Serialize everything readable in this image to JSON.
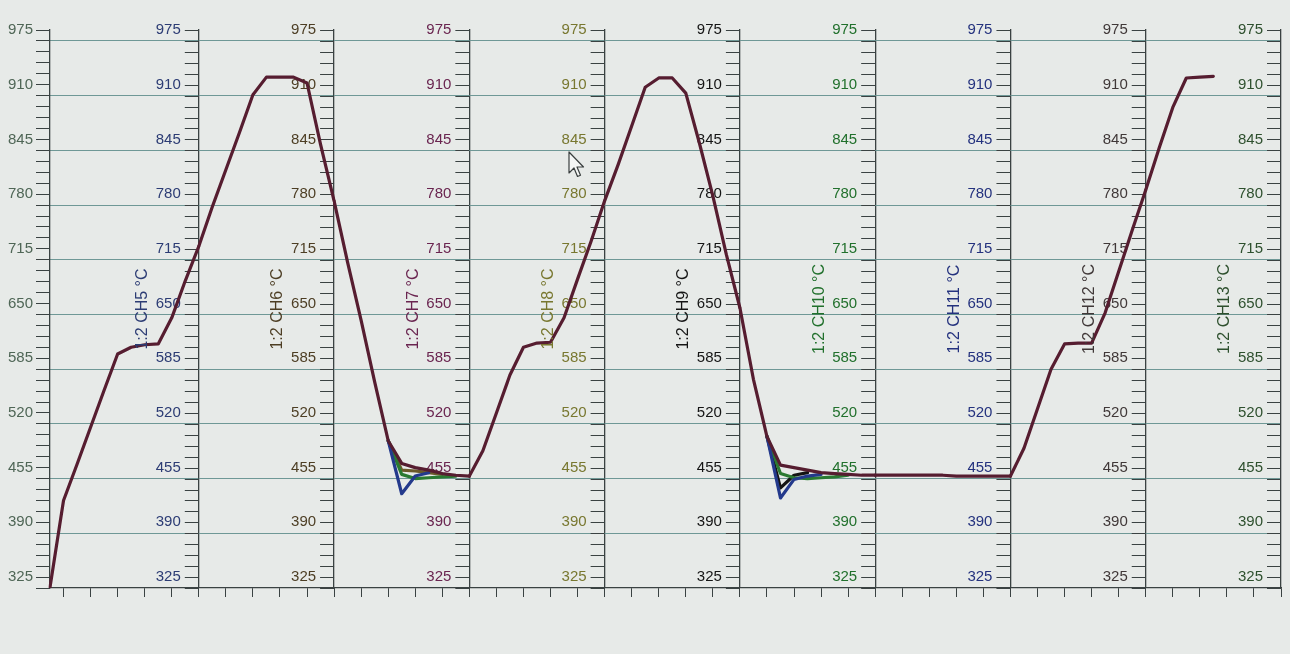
{
  "chart_data": [
    {
      "type": "line",
      "grid": "y",
      "categories": [
        null,
        null,
        null,
        null,
        null,
        null,
        null,
        null,
        null,
        null,
        null,
        null
      ],
      "ylim": [
        312,
        975
      ],
      "yticks": [
        {
          "value": 312,
          "label": null
        },
        325,
        {
          "value": 338,
          "label": null
        },
        {
          "value": 351,
          "label": null
        },
        {
          "value": 364,
          "label": null
        },
        {
          "value": 377,
          "label": null
        },
        390,
        {
          "value": 403,
          "label": null
        },
        {
          "value": 416,
          "label": null
        },
        {
          "value": 429,
          "label": null
        },
        {
          "value": 442,
          "label": null
        },
        455,
        {
          "value": 468,
          "label": null
        },
        {
          "value": 481,
          "label": null
        },
        {
          "value": 494,
          "label": null
        },
        {
          "value": 507,
          "label": null
        },
        520,
        {
          "value": 533,
          "label": null
        },
        {
          "value": 546,
          "label": null
        },
        {
          "value": 559,
          "label": null
        },
        {
          "value": 572,
          "label": null
        },
        585,
        {
          "value": 598,
          "label": null
        },
        {
          "value": 611,
          "label": null
        },
        {
          "value": 624,
          "label": null
        },
        {
          "value": 637,
          "label": null
        },
        650,
        {
          "value": 663,
          "label": null
        },
        {
          "value": 676,
          "label": null
        },
        {
          "value": 689,
          "label": null
        },
        {
          "value": 702,
          "label": null
        },
        715,
        {
          "value": 728,
          "label": null
        },
        {
          "value": 741,
          "label": null
        },
        {
          "value": 754,
          "label": null
        },
        {
          "value": 767,
          "label": null
        },
        780,
        {
          "value": 793,
          "label": null
        },
        {
          "value": 806,
          "label": null
        },
        {
          "value": 819,
          "label": null
        },
        {
          "value": 832,
          "label": null
        },
        845,
        {
          "value": 858,
          "label": null
        },
        {
          "value": 871,
          "label": null
        },
        {
          "value": 884,
          "label": null
        },
        {
          "value": 897,
          "label": null
        },
        910,
        {
          "value": 923,
          "label": null
        },
        {
          "value": 936,
          "label": null
        },
        {
          "value": 949,
          "label": null
        },
        {
          "value": 962,
          "label": null
        },
        975
      ],
      "y2label": "1:2 CH5 °C",
      "y2lim": [
        312,
        975
      ],
      "y2ticks": [
        {
          "value": 312,
          "label": null
        },
        325,
        {
          "value": 338,
          "label": null
        },
        {
          "value": 351,
          "label": null
        },
        {
          "value": 364,
          "label": null
        },
        {
          "value": 377,
          "label": null
        },
        390,
        {
          "value": 403,
          "label": null
        },
        {
          "value": 416,
          "label": null
        },
        {
          "value": 429,
          "label": null
        },
        {
          "value": 442,
          "label": null
        },
        455,
        {
          "value": 468,
          "label": null
        },
        {
          "value": 481,
          "label": null
        },
        {
          "value": 494,
          "label": null
        },
        {
          "value": 507,
          "label": null
        },
        520,
        {
          "value": 533,
          "label": null
        },
        {
          "value": 546,
          "label": null
        },
        {
          "value": 559,
          "label": null
        },
        {
          "value": 572,
          "label": null
        },
        585,
        {
          "value": 598,
          "label": null
        },
        {
          "value": 611,
          "label": null
        },
        {
          "value": 624,
          "label": null
        },
        {
          "value": 637,
          "label": null
        },
        650,
        {
          "value": 663,
          "label": null
        },
        {
          "value": 676,
          "label": null
        },
        {
          "value": 689,
          "label": null
        },
        {
          "value": 702,
          "label": null
        },
        715,
        {
          "value": 728,
          "label": null
        },
        {
          "value": 741,
          "label": null
        },
        {
          "value": 754,
          "label": null
        },
        {
          "value": 767,
          "label": null
        },
        780,
        {
          "value": 793,
          "label": null
        },
        {
          "value": 806,
          "label": null
        },
        {
          "value": 819,
          "label": null
        },
        {
          "value": 832,
          "label": null
        },
        845,
        {
          "value": 858,
          "label": null
        },
        {
          "value": 871,
          "label": null
        },
        {
          "value": 884,
          "label": null
        },
        {
          "value": 897,
          "label": null
        },
        910,
        {
          "value": 923,
          "label": null
        },
        {
          "value": 936,
          "label": null
        },
        {
          "value": 949,
          "label": null
        },
        {
          "value": 962,
          "label": null
        },
        975
      ],
      "series": [
        {
          "color": "#561d30",
          "values": [
            313,
            416,
            459,
            503,
            547,
            590,
            598,
            601,
            602,
            633,
            677,
            718
          ]
        }
      ]
    },
    {
      "type": "line",
      "grid": "y",
      "categories": [
        null,
        null,
        null,
        null,
        null,
        null,
        null,
        null,
        null,
        null,
        null
      ],
      "ylabel": "1:2 CH6 °C",
      "ylim": [
        312,
        975
      ],
      "yticks": [
        {
          "value": 312,
          "label": null
        },
        325,
        {
          "value": 338,
          "label": null
        },
        {
          "value": 351,
          "label": null
        },
        {
          "value": 364,
          "label": null
        },
        {
          "value": 377,
          "label": null
        },
        390,
        {
          "value": 403,
          "label": null
        },
        {
          "value": 416,
          "label": null
        },
        {
          "value": 429,
          "label": null
        },
        {
          "value": 442,
          "label": null
        },
        455,
        {
          "value": 468,
          "label": null
        },
        {
          "value": 481,
          "label": null
        },
        {
          "value": 494,
          "label": null
        },
        {
          "value": 507,
          "label": null
        },
        520,
        {
          "value": 533,
          "label": null
        },
        {
          "value": 546,
          "label": null
        },
        {
          "value": 559,
          "label": null
        },
        {
          "value": 572,
          "label": null
        },
        585,
        {
          "value": 598,
          "label": null
        },
        {
          "value": 611,
          "label": null
        },
        {
          "value": 624,
          "label": null
        },
        {
          "value": 637,
          "label": null
        },
        650,
        {
          "value": 663,
          "label": null
        },
        {
          "value": 676,
          "label": null
        },
        {
          "value": 689,
          "label": null
        },
        {
          "value": 702,
          "label": null
        },
        715,
        {
          "value": 728,
          "label": null
        },
        {
          "value": 741,
          "label": null
        },
        {
          "value": 754,
          "label": null
        },
        {
          "value": 767,
          "label": null
        },
        780,
        {
          "value": 793,
          "label": null
        },
        {
          "value": 806,
          "label": null
        },
        {
          "value": 819,
          "label": null
        },
        {
          "value": 832,
          "label": null
        },
        845,
        {
          "value": 858,
          "label": null
        },
        {
          "value": 871,
          "label": null
        },
        {
          "value": 884,
          "label": null
        },
        {
          "value": 897,
          "label": null
        },
        910,
        {
          "value": 923,
          "label": null
        },
        {
          "value": 936,
          "label": null
        },
        {
          "value": 949,
          "label": null
        },
        {
          "value": 962,
          "label": null
        },
        975
      ],
      "series": [
        {
          "color": "#561d30",
          "values": [
            718,
            765,
            809,
            853,
            898,
            919,
            919,
            919,
            912,
            839,
            772
          ]
        }
      ]
    },
    {
      "type": "line",
      "grid": "y",
      "categories": [
        null,
        null,
        null,
        null,
        null,
        null,
        null,
        null,
        null,
        null,
        null
      ],
      "ylabel": "1:2 CH7 °C",
      "ylim": [
        312,
        975
      ],
      "yticks": [
        {
          "value": 312,
          "label": null
        },
        325,
        {
          "value": 338,
          "label": null
        },
        {
          "value": 351,
          "label": null
        },
        {
          "value": 364,
          "label": null
        },
        {
          "value": 377,
          "label": null
        },
        390,
        {
          "value": 403,
          "label": null
        },
        {
          "value": 416,
          "label": null
        },
        {
          "value": 429,
          "label": null
        },
        {
          "value": 442,
          "label": null
        },
        455,
        {
          "value": 468,
          "label": null
        },
        {
          "value": 481,
          "label": null
        },
        {
          "value": 494,
          "label": null
        },
        {
          "value": 507,
          "label": null
        },
        520,
        {
          "value": 533,
          "label": null
        },
        {
          "value": 546,
          "label": null
        },
        {
          "value": 559,
          "label": null
        },
        {
          "value": 572,
          "label": null
        },
        585,
        {
          "value": 598,
          "label": null
        },
        {
          "value": 611,
          "label": null
        },
        {
          "value": 624,
          "label": null
        },
        {
          "value": 637,
          "label": null
        },
        650,
        {
          "value": 663,
          "label": null
        },
        {
          "value": 676,
          "label": null
        },
        {
          "value": 689,
          "label": null
        },
        {
          "value": 702,
          "label": null
        },
        715,
        {
          "value": 728,
          "label": null
        },
        {
          "value": 741,
          "label": null
        },
        {
          "value": 754,
          "label": null
        },
        {
          "value": 767,
          "label": null
        },
        780,
        {
          "value": 793,
          "label": null
        },
        {
          "value": 806,
          "label": null
        },
        {
          "value": 819,
          "label": null
        },
        {
          "value": 832,
          "label": null
        },
        845,
        {
          "value": 858,
          "label": null
        },
        {
          "value": 871,
          "label": null
        },
        {
          "value": 884,
          "label": null
        },
        {
          "value": 897,
          "label": null
        },
        910,
        {
          "value": 923,
          "label": null
        },
        {
          "value": 936,
          "label": null
        },
        {
          "value": 949,
          "label": null
        },
        {
          "value": 962,
          "label": null
        },
        975
      ],
      "series": [
        {
          "color": "#6b5a2a",
          "values": [
            null,
            null,
            null,
            null,
            487,
            452,
            451,
            449,
            447,
            null,
            null
          ]
        },
        {
          "color": "#2a7a32",
          "values": [
            null,
            null,
            null,
            null,
            487,
            447,
            442,
            443,
            444,
            445,
            null
          ]
        },
        {
          "color": "#243a8c",
          "values": [
            null,
            null,
            null,
            null,
            487,
            424,
            445,
            449,
            null,
            null,
            null
          ]
        },
        {
          "color": "#561d30",
          "values": [
            772,
            699,
            630,
            557,
            487,
            460,
            455,
            452,
            448,
            446,
            445
          ]
        }
      ]
    },
    {
      "type": "line",
      "grid": "y",
      "categories": [
        null,
        null,
        null,
        null,
        null,
        null,
        null,
        null,
        null,
        null,
        null
      ],
      "ylabel": "1:2 CH8 °C",
      "ylim": [
        312,
        975
      ],
      "yticks": [
        {
          "value": 312,
          "label": null
        },
        325,
        {
          "value": 338,
          "label": null
        },
        {
          "value": 351,
          "label": null
        },
        {
          "value": 364,
          "label": null
        },
        {
          "value": 377,
          "label": null
        },
        390,
        {
          "value": 403,
          "label": null
        },
        {
          "value": 416,
          "label": null
        },
        {
          "value": 429,
          "label": null
        },
        {
          "value": 442,
          "label": null
        },
        455,
        {
          "value": 468,
          "label": null
        },
        {
          "value": 481,
          "label": null
        },
        {
          "value": 494,
          "label": null
        },
        {
          "value": 507,
          "label": null
        },
        520,
        {
          "value": 533,
          "label": null
        },
        {
          "value": 546,
          "label": null
        },
        {
          "value": 559,
          "label": null
        },
        {
          "value": 572,
          "label": null
        },
        585,
        {
          "value": 598,
          "label": null
        },
        {
          "value": 611,
          "label": null
        },
        {
          "value": 624,
          "label": null
        },
        {
          "value": 637,
          "label": null
        },
        650,
        {
          "value": 663,
          "label": null
        },
        {
          "value": 676,
          "label": null
        },
        {
          "value": 689,
          "label": null
        },
        {
          "value": 702,
          "label": null
        },
        715,
        {
          "value": 728,
          "label": null
        },
        {
          "value": 741,
          "label": null
        },
        {
          "value": 754,
          "label": null
        },
        {
          "value": 767,
          "label": null
        },
        780,
        {
          "value": 793,
          "label": null
        },
        {
          "value": 806,
          "label": null
        },
        {
          "value": 819,
          "label": null
        },
        {
          "value": 832,
          "label": null
        },
        845,
        {
          "value": 858,
          "label": null
        },
        {
          "value": 871,
          "label": null
        },
        {
          "value": 884,
          "label": null
        },
        {
          "value": 897,
          "label": null
        },
        910,
        {
          "value": 923,
          "label": null
        },
        {
          "value": 936,
          "label": null
        },
        {
          "value": 949,
          "label": null
        },
        {
          "value": 962,
          "label": null
        },
        975
      ],
      "series": [
        {
          "color": "#561d30",
          "values": [
            445,
            475,
            520,
            565,
            598,
            603,
            604,
            633,
            679,
            724,
            772
          ]
        }
      ]
    },
    {
      "type": "line",
      "grid": "y",
      "categories": [
        null,
        null,
        null,
        null,
        null,
        null,
        null,
        null,
        null,
        null,
        null
      ],
      "ylabel": "1:2 CH9 °C",
      "ylim": [
        312,
        975
      ],
      "yticks": [
        {
          "value": 312,
          "label": null
        },
        325,
        {
          "value": 338,
          "label": null
        },
        {
          "value": 351,
          "label": null
        },
        {
          "value": 364,
          "label": null
        },
        {
          "value": 377,
          "label": null
        },
        390,
        {
          "value": 403,
          "label": null
        },
        {
          "value": 416,
          "label": null
        },
        {
          "value": 429,
          "label": null
        },
        {
          "value": 442,
          "label": null
        },
        455,
        {
          "value": 468,
          "label": null
        },
        {
          "value": 481,
          "label": null
        },
        {
          "value": 494,
          "label": null
        },
        {
          "value": 507,
          "label": null
        },
        520,
        {
          "value": 533,
          "label": null
        },
        {
          "value": 546,
          "label": null
        },
        {
          "value": 559,
          "label": null
        },
        {
          "value": 572,
          "label": null
        },
        585,
        {
          "value": 598,
          "label": null
        },
        {
          "value": 611,
          "label": null
        },
        {
          "value": 624,
          "label": null
        },
        {
          "value": 637,
          "label": null
        },
        650,
        {
          "value": 663,
          "label": null
        },
        {
          "value": 676,
          "label": null
        },
        {
          "value": 689,
          "label": null
        },
        {
          "value": 702,
          "label": null
        },
        715,
        {
          "value": 728,
          "label": null
        },
        {
          "value": 741,
          "label": null
        },
        {
          "value": 754,
          "label": null
        },
        {
          "value": 767,
          "label": null
        },
        780,
        {
          "value": 793,
          "label": null
        },
        {
          "value": 806,
          "label": null
        },
        {
          "value": 819,
          "label": null
        },
        {
          "value": 832,
          "label": null
        },
        845,
        {
          "value": 858,
          "label": null
        },
        {
          "value": 871,
          "label": null
        },
        {
          "value": 884,
          "label": null
        },
        {
          "value": 897,
          "label": null
        },
        910,
        {
          "value": 923,
          "label": null
        },
        {
          "value": 936,
          "label": null
        },
        {
          "value": 949,
          "label": null
        },
        {
          "value": 962,
          "label": null
        },
        975
      ],
      "series": [
        {
          "color": "#561d30",
          "values": [
            772,
            815,
            861,
            907,
            918,
            918,
            900,
            841,
            778,
            708,
            645
          ]
        }
      ]
    },
    {
      "type": "line",
      "grid": "y",
      "categories": [
        null,
        null,
        null,
        null,
        null,
        null,
        null,
        null,
        null,
        null,
        null
      ],
      "ylabel": "1:2 CH10 °C",
      "ylim": [
        312,
        975
      ],
      "yticks": [
        {
          "value": 312,
          "label": null
        },
        325,
        {
          "value": 338,
          "label": null
        },
        {
          "value": 351,
          "label": null
        },
        {
          "value": 364,
          "label": null
        },
        {
          "value": 377,
          "label": null
        },
        390,
        {
          "value": 403,
          "label": null
        },
        {
          "value": 416,
          "label": null
        },
        {
          "value": 429,
          "label": null
        },
        {
          "value": 442,
          "label": null
        },
        455,
        {
          "value": 468,
          "label": null
        },
        {
          "value": 481,
          "label": null
        },
        {
          "value": 494,
          "label": null
        },
        {
          "value": 507,
          "label": null
        },
        520,
        {
          "value": 533,
          "label": null
        },
        {
          "value": 546,
          "label": null
        },
        {
          "value": 559,
          "label": null
        },
        {
          "value": 572,
          "label": null
        },
        585,
        {
          "value": 598,
          "label": null
        },
        {
          "value": 611,
          "label": null
        },
        {
          "value": 624,
          "label": null
        },
        {
          "value": 637,
          "label": null
        },
        650,
        {
          "value": 663,
          "label": null
        },
        {
          "value": 676,
          "label": null
        },
        {
          "value": 689,
          "label": null
        },
        {
          "value": 702,
          "label": null
        },
        715,
        {
          "value": 728,
          "label": null
        },
        {
          "value": 741,
          "label": null
        },
        {
          "value": 754,
          "label": null
        },
        {
          "value": 767,
          "label": null
        },
        780,
        {
          "value": 793,
          "label": null
        },
        {
          "value": 806,
          "label": null
        },
        {
          "value": 819,
          "label": null
        },
        {
          "value": 832,
          "label": null
        },
        845,
        {
          "value": 858,
          "label": null
        },
        {
          "value": 871,
          "label": null
        },
        {
          "value": 884,
          "label": null
        },
        {
          "value": 897,
          "label": null
        },
        910,
        {
          "value": 923,
          "label": null
        },
        {
          "value": 936,
          "label": null
        },
        {
          "value": 949,
          "label": null
        },
        {
          "value": 962,
          "label": null
        },
        975
      ],
      "series": [
        {
          "color": "#141414",
          "values": [
            null,
            null,
            492,
            431,
            446,
            449,
            null,
            null,
            null,
            null,
            null
          ]
        },
        {
          "color": "#2a7a32",
          "values": [
            null,
            null,
            492,
            448,
            443,
            442,
            443,
            444,
            446,
            null,
            null
          ]
        },
        {
          "color": "#243a8c",
          "values": [
            null,
            null,
            492,
            419,
            441,
            445,
            447,
            null,
            null,
            null,
            null
          ]
        },
        {
          "color": "#561d30",
          "values": [
            645,
            560,
            492,
            458,
            455,
            452,
            449,
            448,
            447,
            446,
            446
          ]
        }
      ]
    },
    {
      "type": "line",
      "grid": "y",
      "categories": [
        null,
        null,
        null,
        null,
        null,
        null,
        null,
        null,
        null,
        null,
        null
      ],
      "ylabel": "1:2 CH11 °C",
      "ylim": [
        312,
        975
      ],
      "yticks": [
        {
          "value": 312,
          "label": null
        },
        325,
        {
          "value": 338,
          "label": null
        },
        {
          "value": 351,
          "label": null
        },
        {
          "value": 364,
          "label": null
        },
        {
          "value": 377,
          "label": null
        },
        390,
        {
          "value": 403,
          "label": null
        },
        {
          "value": 416,
          "label": null
        },
        {
          "value": 429,
          "label": null
        },
        {
          "value": 442,
          "label": null
        },
        455,
        {
          "value": 468,
          "label": null
        },
        {
          "value": 481,
          "label": null
        },
        {
          "value": 494,
          "label": null
        },
        {
          "value": 507,
          "label": null
        },
        520,
        {
          "value": 533,
          "label": null
        },
        {
          "value": 546,
          "label": null
        },
        {
          "value": 559,
          "label": null
        },
        {
          "value": 572,
          "label": null
        },
        585,
        {
          "value": 598,
          "label": null
        },
        {
          "value": 611,
          "label": null
        },
        {
          "value": 624,
          "label": null
        },
        {
          "value": 637,
          "label": null
        },
        650,
        {
          "value": 663,
          "label": null
        },
        {
          "value": 676,
          "label": null
        },
        {
          "value": 689,
          "label": null
        },
        {
          "value": 702,
          "label": null
        },
        715,
        {
          "value": 728,
          "label": null
        },
        {
          "value": 741,
          "label": null
        },
        {
          "value": 754,
          "label": null
        },
        {
          "value": 767,
          "label": null
        },
        780,
        {
          "value": 793,
          "label": null
        },
        {
          "value": 806,
          "label": null
        },
        {
          "value": 819,
          "label": null
        },
        {
          "value": 832,
          "label": null
        },
        845,
        {
          "value": 858,
          "label": null
        },
        {
          "value": 871,
          "label": null
        },
        {
          "value": 884,
          "label": null
        },
        {
          "value": 897,
          "label": null
        },
        910,
        {
          "value": 923,
          "label": null
        },
        {
          "value": 936,
          "label": null
        },
        {
          "value": 949,
          "label": null
        },
        {
          "value": 962,
          "label": null
        },
        975
      ],
      "series": [
        {
          "color": "#561d30",
          "values": [
            446,
            446,
            446,
            446,
            446,
            446,
            445,
            445,
            445,
            445,
            445
          ]
        }
      ]
    },
    {
      "type": "line",
      "grid": "y",
      "categories": [
        null,
        null,
        null,
        null,
        null,
        null,
        null,
        null,
        null,
        null,
        null
      ],
      "ylabel": "1:2 CH12 °C",
      "ylim": [
        312,
        975
      ],
      "yticks": [
        {
          "value": 312,
          "label": null
        },
        325,
        {
          "value": 338,
          "label": null
        },
        {
          "value": 351,
          "label": null
        },
        {
          "value": 364,
          "label": null
        },
        {
          "value": 377,
          "label": null
        },
        390,
        {
          "value": 403,
          "label": null
        },
        {
          "value": 416,
          "label": null
        },
        {
          "value": 429,
          "label": null
        },
        {
          "value": 442,
          "label": null
        },
        455,
        {
          "value": 468,
          "label": null
        },
        {
          "value": 481,
          "label": null
        },
        {
          "value": 494,
          "label": null
        },
        {
          "value": 507,
          "label": null
        },
        520,
        {
          "value": 533,
          "label": null
        },
        {
          "value": 546,
          "label": null
        },
        {
          "value": 559,
          "label": null
        },
        {
          "value": 572,
          "label": null
        },
        585,
        {
          "value": 598,
          "label": null
        },
        {
          "value": 611,
          "label": null
        },
        {
          "value": 624,
          "label": null
        },
        {
          "value": 637,
          "label": null
        },
        650,
        {
          "value": 663,
          "label": null
        },
        {
          "value": 676,
          "label": null
        },
        {
          "value": 689,
          "label": null
        },
        {
          "value": 702,
          "label": null
        },
        715,
        {
          "value": 728,
          "label": null
        },
        {
          "value": 741,
          "label": null
        },
        {
          "value": 754,
          "label": null
        },
        {
          "value": 767,
          "label": null
        },
        780,
        {
          "value": 793,
          "label": null
        },
        {
          "value": 806,
          "label": null
        },
        {
          "value": 819,
          "label": null
        },
        {
          "value": 832,
          "label": null
        },
        845,
        {
          "value": 858,
          "label": null
        },
        {
          "value": 871,
          "label": null
        },
        {
          "value": 884,
          "label": null
        },
        {
          "value": 897,
          "label": null
        },
        910,
        {
          "value": 923,
          "label": null
        },
        {
          "value": 936,
          "label": null
        },
        {
          "value": 949,
          "label": null
        },
        {
          "value": 962,
          "label": null
        },
        975
      ],
      "series": [
        {
          "color": "#561d30",
          "values": [
            445,
            478,
            525,
            572,
            602,
            603,
            603,
            639,
            688,
            737,
            785
          ]
        }
      ]
    },
    {
      "type": "line",
      "grid": "y",
      "categories": [
        null,
        null,
        null,
        null,
        null,
        null,
        null,
        null,
        null,
        null,
        null
      ],
      "ylabel": "1:2 CH13 °C",
      "ylim": [
        312,
        975
      ],
      "yticks": [
        {
          "value": 312,
          "label": null
        },
        325,
        {
          "value": 338,
          "label": null
        },
        {
          "value": 351,
          "label": null
        },
        {
          "value": 364,
          "label": null
        },
        {
          "value": 377,
          "label": null
        },
        390,
        {
          "value": 403,
          "label": null
        },
        {
          "value": 416,
          "label": null
        },
        {
          "value": 429,
          "label": null
        },
        {
          "value": 442,
          "label": null
        },
        455,
        {
          "value": 468,
          "label": null
        },
        {
          "value": 481,
          "label": null
        },
        {
          "value": 494,
          "label": null
        },
        {
          "value": 507,
          "label": null
        },
        520,
        {
          "value": 533,
          "label": null
        },
        {
          "value": 546,
          "label": null
        },
        {
          "value": 559,
          "label": null
        },
        {
          "value": 572,
          "label": null
        },
        585,
        {
          "value": 598,
          "label": null
        },
        {
          "value": 611,
          "label": null
        },
        {
          "value": 624,
          "label": null
        },
        {
          "value": 637,
          "label": null
        },
        650,
        {
          "value": 663,
          "label": null
        },
        {
          "value": 676,
          "label": null
        },
        {
          "value": 689,
          "label": null
        },
        {
          "value": 702,
          "label": null
        },
        715,
        {
          "value": 728,
          "label": null
        },
        {
          "value": 741,
          "label": null
        },
        {
          "value": 754,
          "label": null
        },
        {
          "value": 767,
          "label": null
        },
        780,
        {
          "value": 793,
          "label": null
        },
        {
          "value": 806,
          "label": null
        },
        {
          "value": 819,
          "label": null
        },
        {
          "value": 832,
          "label": null
        },
        845,
        {
          "value": 858,
          "label": null
        },
        {
          "value": 871,
          "label": null
        },
        {
          "value": 884,
          "label": null
        },
        {
          "value": 897,
          "label": null
        },
        910,
        {
          "value": 923,
          "label": null
        },
        {
          "value": 936,
          "label": null
        },
        {
          "value": 949,
          "label": null
        },
        {
          "value": 962,
          "label": null
        },
        975
      ],
      "series": [
        {
          "color": "#561d30",
          "values": [
            785,
            835,
            883,
            918,
            919,
            920,
            null,
            null,
            null,
            null,
            null
          ]
        }
      ]
    }
  ]
}
